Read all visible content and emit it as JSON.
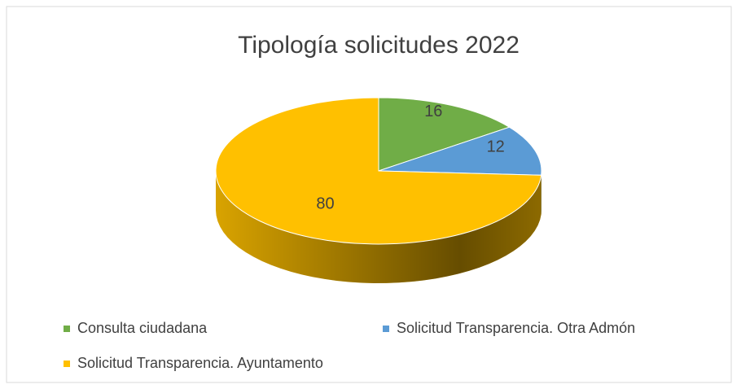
{
  "chart_data": {
    "type": "pie",
    "title": "Tipología solicitudes 2022",
    "categories": [
      "Consulta ciudadana",
      "Solicitud Transparencia. Otra Admón",
      "Solicitud Transparencia. Ayuntamento"
    ],
    "values": [
      16,
      12,
      80
    ],
    "colors": [
      "#70ad47",
      "#5b9bd5",
      "#ffc000"
    ]
  }
}
